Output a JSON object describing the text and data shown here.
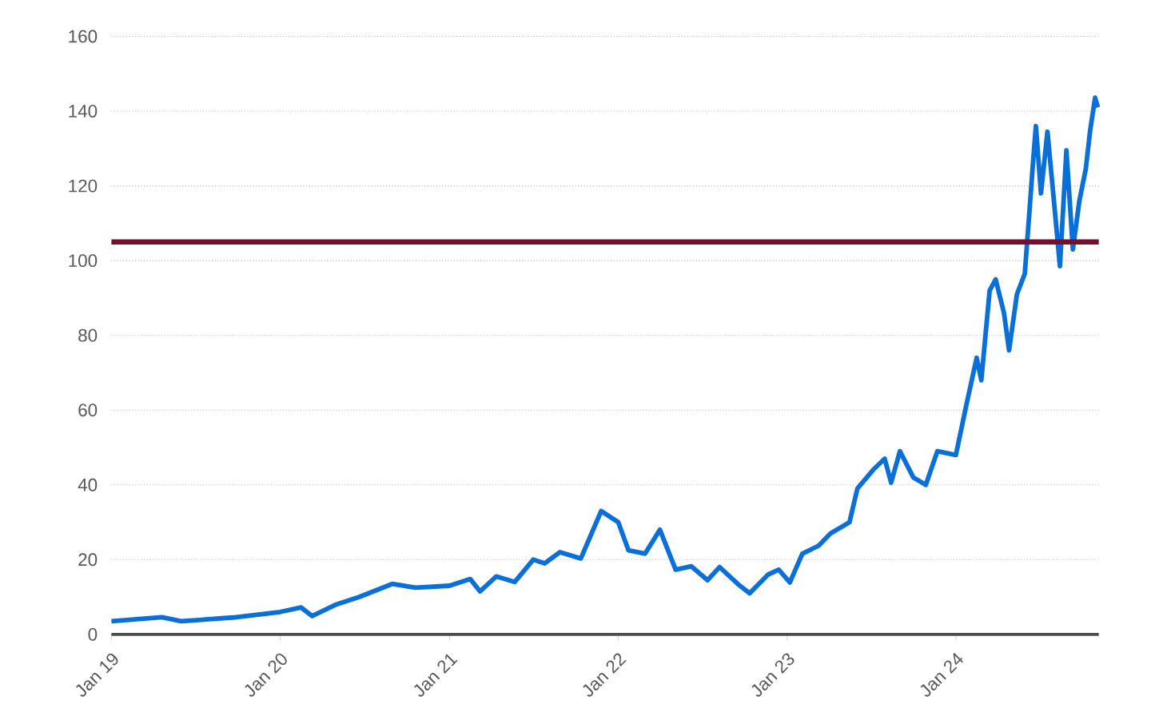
{
  "chart_data": {
    "type": "line",
    "x": [
      "2019-01-01",
      "2019-04-20",
      "2019-06-01",
      "2019-09-20",
      "2020-01-01",
      "2020-02-15",
      "2020-03-10",
      "2020-05-01",
      "2020-06-20",
      "2020-08-30",
      "2020-10-20",
      "2021-01-01",
      "2021-02-15",
      "2021-03-08",
      "2021-04-12",
      "2021-05-22",
      "2021-07-01",
      "2021-07-26",
      "2021-08-28",
      "2021-10-12",
      "2021-11-25",
      "2022-01-01",
      "2022-01-23",
      "2022-02-28",
      "2022-04-01",
      "2022-05-05",
      "2022-06-08",
      "2022-07-13",
      "2022-08-08",
      "2022-09-20",
      "2022-10-12",
      "2022-11-21",
      "2022-12-14",
      "2023-01-07",
      "2023-02-03",
      "2023-03-10",
      "2023-04-05",
      "2023-05-16",
      "2023-06-02",
      "2023-07-06",
      "2023-07-31",
      "2023-08-14",
      "2023-09-02",
      "2023-10-01",
      "2023-10-28",
      "2023-11-22",
      "2024-01-01",
      "2024-01-23",
      "2024-02-15",
      "2024-02-25",
      "2024-03-14",
      "2024-03-27",
      "2024-04-14",
      "2024-04-25",
      "2024-05-12",
      "2024-05-29",
      "2024-06-08",
      "2024-06-15",
      "2024-06-22",
      "2024-07-03",
      "2024-07-17",
      "2024-07-31",
      "2024-08-13",
      "2024-08-27",
      "2024-09-10",
      "2024-09-24",
      "2024-10-08",
      "2024-10-17",
      "2024-10-28",
      "2024-11-03"
    ],
    "values": [
      3.5,
      4.6,
      3.5,
      4.5,
      6,
      7.2,
      4.9,
      8,
      10,
      13.5,
      12.5,
      13,
      14.8,
      11.5,
      15.5,
      14,
      20,
      19,
      22,
      20.3,
      33,
      30,
      22.5,
      21.6,
      28,
      17.3,
      18.2,
      14.5,
      18,
      13.1,
      11,
      16,
      17.3,
      13.9,
      21.6,
      23.7,
      27,
      30,
      39,
      44,
      47,
      40.6,
      49,
      42,
      40,
      49,
      48,
      61,
      74,
      68,
      92,
      95,
      86,
      76,
      91,
      96.5,
      113,
      125,
      136,
      118,
      134.5,
      116,
      98.5,
      129.5,
      103,
      116,
      124.6,
      134.5,
      143.6,
      141
    ],
    "color": "#0b6fd8",
    "xlim": [
      "2019-01-01",
      "2024-11-05"
    ],
    "xticks": [
      {
        "value": "2019-01-01",
        "label": "Jan 19"
      },
      {
        "value": "2020-01-01",
        "label": "Jan 20"
      },
      {
        "value": "2021-01-01",
        "label": "Jan 21"
      },
      {
        "value": "2022-01-01",
        "label": "Jan 22"
      },
      {
        "value": "2023-01-01",
        "label": "Jan 23"
      },
      {
        "value": "2024-01-01",
        "label": "Jan 24"
      }
    ],
    "ylim": [
      0,
      160
    ],
    "yticks": [
      0,
      20,
      40,
      60,
      80,
      100,
      120,
      140,
      160
    ],
    "grid": "y",
    "ref_lines": [
      {
        "axis": "y",
        "value": 105,
        "color": "#7b0c2e"
      }
    ]
  }
}
